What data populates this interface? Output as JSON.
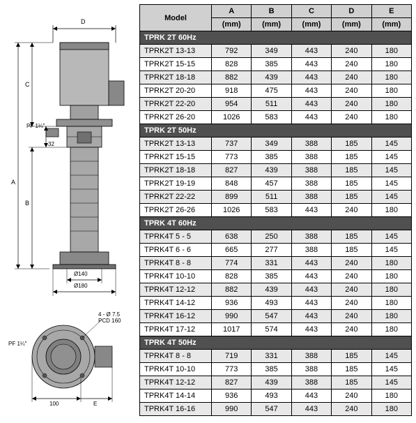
{
  "diagram": {
    "D": "D",
    "C": "C",
    "A": "A",
    "B": "B",
    "PF1_top": "PF 1¼\"",
    "thirtytwo": "32",
    "phi140": "Ø140",
    "phi180": "Ø180",
    "holes": "4 - Ø 7.5",
    "pcd": "PCD 160",
    "PF1_bot": "PF 1¼\"",
    "hundred": "100",
    "E": "E"
  },
  "headers": {
    "model": "Model",
    "A": "A",
    "B": "B",
    "C": "C",
    "D": "D",
    "E": "E",
    "unit": "(mm)"
  },
  "sections": [
    {
      "title": "TPRK 2T  60Hz",
      "rows": [
        {
          "m": "TPRK2T 13-13",
          "a": "792",
          "b": "349",
          "c": "443",
          "d": "240",
          "e": "180",
          "sh": 1
        },
        {
          "m": "TPRK2T 15-15",
          "a": "828",
          "b": "385",
          "c": "443",
          "d": "240",
          "e": "180",
          "sh": 0
        },
        {
          "m": "TPRK2T 18-18",
          "a": "882",
          "b": "439",
          "c": "443",
          "d": "240",
          "e": "180",
          "sh": 1
        },
        {
          "m": "TPRK2T 20-20",
          "a": "918",
          "b": "475",
          "c": "443",
          "d": "240",
          "e": "180",
          "sh": 0
        },
        {
          "m": "TPRK2T 22-20",
          "a": "954",
          "b": "511",
          "c": "443",
          "d": "240",
          "e": "180",
          "sh": 1
        },
        {
          "m": "TPRK2T 26-20",
          "a": "1026",
          "b": "583",
          "c": "443",
          "d": "240",
          "e": "180",
          "sh": 0
        }
      ]
    },
    {
      "title": "TPRK 2T  50Hz",
      "rows": [
        {
          "m": "TPRK2T 13-13",
          "a": "737",
          "b": "349",
          "c": "388",
          "d": "185",
          "e": "145",
          "sh": 1
        },
        {
          "m": "TPRK2T 15-15",
          "a": "773",
          "b": "385",
          "c": "388",
          "d": "185",
          "e": "145",
          "sh": 0
        },
        {
          "m": "TPRK2T 18-18",
          "a": "827",
          "b": "439",
          "c": "388",
          "d": "185",
          "e": "145",
          "sh": 1
        },
        {
          "m": "TPRK2T 19-19",
          "a": "848",
          "b": "457",
          "c": "388",
          "d": "185",
          "e": "145",
          "sh": 0
        },
        {
          "m": "TPRK2T 22-22",
          "a": "899",
          "b": "511",
          "c": "388",
          "d": "185",
          "e": "145",
          "sh": 1
        },
        {
          "m": "TPRK2T 26-26",
          "a": "1026",
          "b": "583",
          "c": "443",
          "d": "240",
          "e": "180",
          "sh": 0
        }
      ]
    },
    {
      "title": "TPRK 4T  60Hz",
      "rows": [
        {
          "m": "TPRK4T  5 - 5",
          "a": "638",
          "b": "250",
          "c": "388",
          "d": "185",
          "e": "145",
          "sh": 1
        },
        {
          "m": "TPRK4T  6 - 6",
          "a": "665",
          "b": "277",
          "c": "388",
          "d": "185",
          "e": "145",
          "sh": 0
        },
        {
          "m": "TPRK4T  8 - 8",
          "a": "774",
          "b": "331",
          "c": "443",
          "d": "240",
          "e": "180",
          "sh": 1
        },
        {
          "m": "TPRK4T 10-10",
          "a": "828",
          "b": "385",
          "c": "443",
          "d": "240",
          "e": "180",
          "sh": 0
        },
        {
          "m": "TPRK4T 12-12",
          "a": "882",
          "b": "439",
          "c": "443",
          "d": "240",
          "e": "180",
          "sh": 1
        },
        {
          "m": "TPRK4T 14-12",
          "a": "936",
          "b": "493",
          "c": "443",
          "d": "240",
          "e": "180",
          "sh": 0
        },
        {
          "m": "TPRK4T 16-12",
          "a": "990",
          "b": "547",
          "c": "443",
          "d": "240",
          "e": "180",
          "sh": 1
        },
        {
          "m": "TPRK4T 17-12",
          "a": "1017",
          "b": "574",
          "c": "443",
          "d": "240",
          "e": "180",
          "sh": 0
        }
      ]
    },
    {
      "title": "TPRK 4T  50Hz",
      "rows": [
        {
          "m": "TPRK4T  8 - 8",
          "a": "719",
          "b": "331",
          "c": "388",
          "d": "185",
          "e": "145",
          "sh": 1
        },
        {
          "m": "TPRK4T 10-10",
          "a": "773",
          "b": "385",
          "c": "388",
          "d": "185",
          "e": "145",
          "sh": 0
        },
        {
          "m": "TPRK4T 12-12",
          "a": "827",
          "b": "439",
          "c": "388",
          "d": "185",
          "e": "145",
          "sh": 1
        },
        {
          "m": "TPRK4T 14-14",
          "a": "936",
          "b": "493",
          "c": "443",
          "d": "240",
          "e": "180",
          "sh": 0
        },
        {
          "m": "TPRK4T 16-16",
          "a": "990",
          "b": "547",
          "c": "443",
          "d": "240",
          "e": "180",
          "sh": 1
        }
      ]
    }
  ]
}
